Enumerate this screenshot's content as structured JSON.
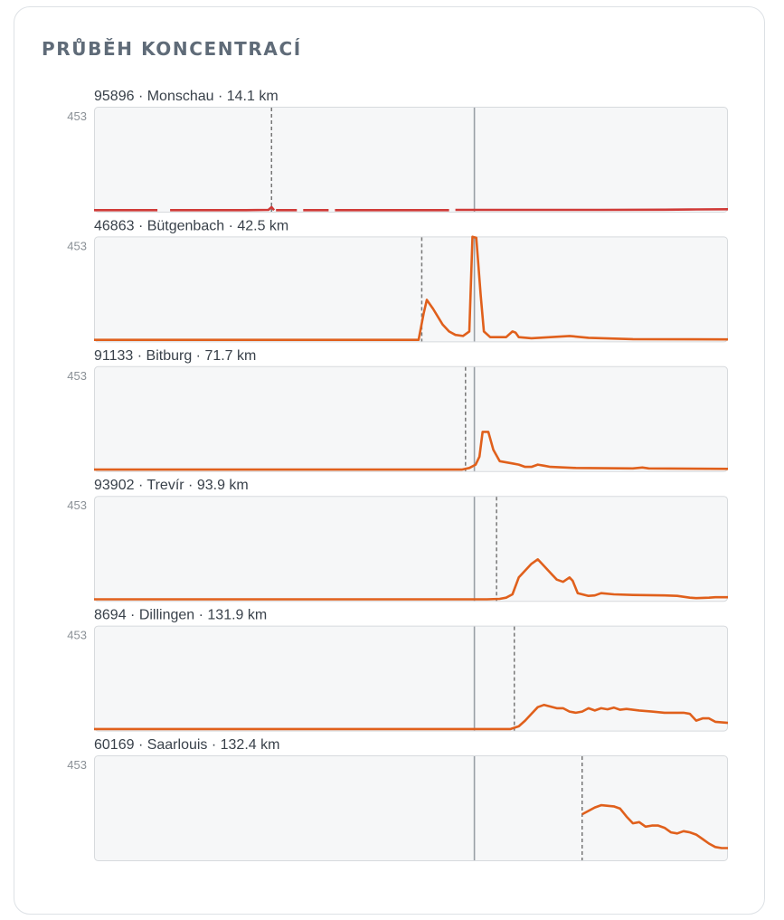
{
  "header": {
    "title": "PRŮBĚH KONCENTRACÍ"
  },
  "colors": {
    "panel_bg": "#f6f7f8",
    "panel_border": "#d7dadd",
    "reference_line": "#9aa0a6",
    "arrival_line": "#777777",
    "series_red": "#d03a37",
    "series_orange": "#e0601c"
  },
  "chart_data": {
    "type": "line",
    "x_range": [
      0,
      100
    ],
    "y_range": [
      0,
      453
    ],
    "reference_x": 60,
    "panels": [
      {
        "label": "95896 · Monschau · 14.1 km",
        "y_max_label": "453",
        "color": "#d03a37",
        "arrival_x": 28,
        "segments": [
          [
            [
              0,
              3
            ],
            [
              9.5,
              3
            ],
            [
              10,
              3
            ]
          ],
          [
            [
              12,
              3
            ],
            [
              24,
              3
            ],
            [
              27.5,
              4
            ],
            [
              28,
              16
            ],
            [
              28.4,
              3
            ]
          ],
          [
            [
              28.7,
              3
            ],
            [
              32,
              3
            ]
          ],
          [
            [
              33,
              3
            ],
            [
              37,
              3
            ]
          ],
          [
            [
              38,
              3
            ],
            [
              56,
              3
            ]
          ],
          [
            [
              57,
              4
            ],
            [
              65,
              4
            ],
            [
              80,
              4
            ],
            [
              90,
              5
            ],
            [
              95,
              6
            ],
            [
              100,
              7
            ]
          ]
        ]
      },
      {
        "label": "46863 · Bütgenbach · 42.5 km",
        "y_max_label": "453",
        "color": "#e0601c",
        "arrival_x": 51.7,
        "segments": [
          [
            [
              0,
              3
            ],
            [
              51.2,
              3
            ],
            [
              52,
              120
            ],
            [
              52.5,
              180
            ],
            [
              53.5,
              140
            ],
            [
              55,
              70
            ],
            [
              56,
              40
            ],
            [
              57,
              25
            ],
            [
              58.2,
              20
            ],
            [
              59.2,
              40
            ],
            [
              59.7,
              460
            ],
            [
              60.3,
              455
            ],
            [
              61,
              200
            ],
            [
              61.5,
              40
            ],
            [
              62.5,
              15
            ],
            [
              65,
              15
            ],
            [
              66,
              40
            ],
            [
              66.5,
              35
            ],
            [
              67,
              15
            ],
            [
              69,
              10
            ],
            [
              75,
              20
            ],
            [
              78,
              12
            ],
            [
              85,
              6
            ],
            [
              100,
              5
            ]
          ]
        ]
      },
      {
        "label": "91133 · Bitburg · 71.7 km",
        "y_max_label": "453",
        "color": "#e0601c",
        "arrival_x": 58.6,
        "segments": [
          [
            [
              0,
              3
            ],
            [
              58,
              3
            ],
            [
              59.2,
              10
            ],
            [
              60.2,
              25
            ],
            [
              60.8,
              60
            ],
            [
              61.3,
              170
            ],
            [
              62.2,
              170
            ],
            [
              63,
              90
            ],
            [
              64,
              40
            ],
            [
              66,
              30
            ],
            [
              67,
              25
            ],
            [
              68,
              15
            ],
            [
              69,
              15
            ],
            [
              70,
              25
            ],
            [
              71,
              20
            ],
            [
              72,
              15
            ],
            [
              76,
              10
            ],
            [
              85,
              8
            ],
            [
              86.5,
              12
            ],
            [
              87.5,
              8
            ],
            [
              100,
              6
            ]
          ]
        ]
      },
      {
        "label": "93902 · Trevír · 93.9 km",
        "y_max_label": "453",
        "color": "#e0601c",
        "arrival_x": 63.5,
        "segments": [
          [
            [
              0,
              3
            ],
            [
              62,
              3
            ],
            [
              64,
              5
            ],
            [
              65,
              10
            ],
            [
              66,
              25
            ],
            [
              67,
              100
            ],
            [
              68,
              130
            ],
            [
              69,
              160
            ],
            [
              70,
              180
            ],
            [
              71,
              150
            ],
            [
              72,
              120
            ],
            [
              73,
              90
            ],
            [
              74,
              80
            ],
            [
              75,
              100
            ],
            [
              75.5,
              85
            ],
            [
              76.3,
              30
            ],
            [
              78,
              18
            ],
            [
              79,
              20
            ],
            [
              80,
              30
            ],
            [
              82,
              25
            ],
            [
              85,
              22
            ],
            [
              90,
              20
            ],
            [
              92,
              18
            ],
            [
              94,
              10
            ],
            [
              95,
              8
            ],
            [
              97,
              10
            ],
            [
              98,
              12
            ],
            [
              100,
              12
            ]
          ]
        ]
      },
      {
        "label": "8694 · Dillingen · 131.9 km",
        "y_max_label": "453",
        "color": "#e0601c",
        "arrival_x": 66.3,
        "segments": [
          [
            [
              0,
              3
            ],
            [
              65.7,
              3
            ],
            [
              67,
              15
            ],
            [
              68,
              40
            ],
            [
              69,
              70
            ],
            [
              70,
              100
            ],
            [
              71,
              110
            ],
            [
              73,
              95
            ],
            [
              74,
              95
            ],
            [
              75,
              80
            ],
            [
              76,
              75
            ],
            [
              77,
              80
            ],
            [
              78,
              95
            ],
            [
              79,
              85
            ],
            [
              80,
              95
            ],
            [
              81,
              90
            ],
            [
              82,
              98
            ],
            [
              83,
              88
            ],
            [
              84,
              92
            ],
            [
              86,
              85
            ],
            [
              88,
              80
            ],
            [
              90,
              75
            ],
            [
              93,
              75
            ],
            [
              94,
              70
            ],
            [
              95,
              40
            ],
            [
              96,
              50
            ],
            [
              97,
              50
            ],
            [
              98,
              35
            ],
            [
              100,
              30
            ]
          ]
        ]
      },
      {
        "label": "60169 · Saarlouis · 132.4 km",
        "y_max_label": "453",
        "color": "#e0601c",
        "arrival_x": 77,
        "segments": [
          [
            [
              77,
              200
            ],
            [
              79,
              230
            ],
            [
              80,
              240
            ],
            [
              82,
              235
            ],
            [
              83,
              225
            ],
            [
              84,
              190
            ],
            [
              85,
              160
            ],
            [
              86,
              165
            ],
            [
              87,
              145
            ],
            [
              88,
              150
            ],
            [
              89,
              150
            ],
            [
              90,
              140
            ],
            [
              91,
              120
            ],
            [
              92,
              115
            ],
            [
              93,
              125
            ],
            [
              94,
              120
            ],
            [
              95,
              110
            ],
            [
              96,
              90
            ],
            [
              97,
              70
            ],
            [
              98,
              55
            ],
            [
              99,
              50
            ],
            [
              100,
              50
            ]
          ]
        ]
      }
    ]
  }
}
